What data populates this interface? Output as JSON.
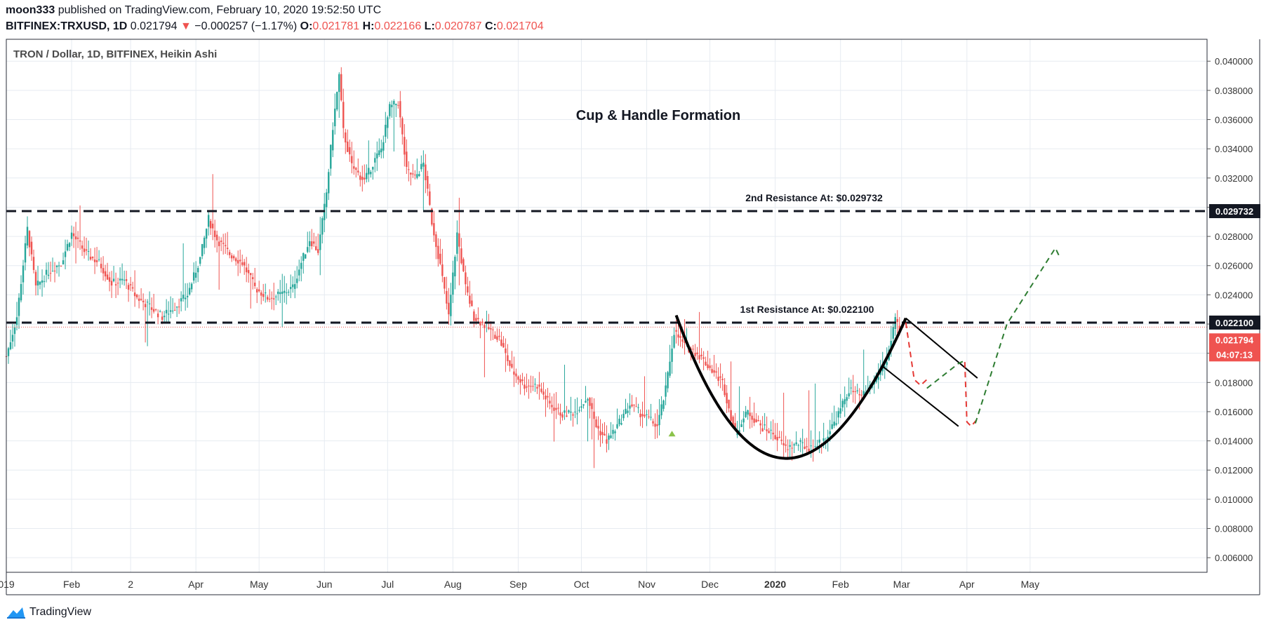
{
  "header": {
    "author": "moon333",
    "published_text": "published on TradingView.com, February 10, 2020 19:52:50 UTC",
    "symbol": "BITFINEX:TRXUSD, 1D",
    "last": "0.021794",
    "change_arrow": "▼",
    "change": "−0.000257 (−1.17%)",
    "o_label": "O:",
    "o_value": "0.021781",
    "h_label": "H:",
    "h_value": "0.022166",
    "l_label": "L:",
    "l_value": "0.020787",
    "c_label": "C:",
    "c_value": "0.021704"
  },
  "footer": {
    "brand": "TradingView",
    "icon": "tradingview-cloud-icon"
  },
  "colors": {
    "up": "#26a69a",
    "down": "#ef5350",
    "grid": "#e6ebf1",
    "ink": "#131722",
    "projection": "#2e7d32"
  },
  "chart_data": {
    "type": "candlestick",
    "subtype": "Heikin Ashi",
    "title": "TRON / Dollar, 1D, BITFINEX, Heikin Ashi",
    "annotation_title": "Cup & Handle Formation",
    "y_range": [
      0.005,
      0.0415
    ],
    "y_ticks": [
      "0.040000",
      "0.038000",
      "0.036000",
      "0.034000",
      "0.032000",
      "0.030000",
      "0.028000",
      "0.026000",
      "0.024000",
      "0.022000",
      "0.020000",
      "0.018000",
      "0.016000",
      "0.014000",
      "0.012000",
      "0.010000",
      "0.008000",
      "0.006000"
    ],
    "x_range_days": [
      0,
      570
    ],
    "x_ticks": [
      {
        "label": "019",
        "day": 0,
        "bold": false
      },
      {
        "label": "Feb",
        "day": 31,
        "bold": false
      },
      {
        "label": "2",
        "day": 59,
        "bold": false
      },
      {
        "label": "Apr",
        "day": 90,
        "bold": false
      },
      {
        "label": "May",
        "day": 120,
        "bold": false
      },
      {
        "label": "Jun",
        "day": 151,
        "bold": false
      },
      {
        "label": "Jul",
        "day": 181,
        "bold": false
      },
      {
        "label": "Aug",
        "day": 212,
        "bold": false
      },
      {
        "label": "Sep",
        "day": 243,
        "bold": false
      },
      {
        "label": "Oct",
        "day": 273,
        "bold": false
      },
      {
        "label": "Nov",
        "day": 304,
        "bold": false
      },
      {
        "label": "Dec",
        "day": 334,
        "bold": false
      },
      {
        "label": "2020",
        "day": 365,
        "bold": true
      },
      {
        "label": "Feb",
        "day": 396,
        "bold": false
      },
      {
        "label": "Mar",
        "day": 425,
        "bold": false
      },
      {
        "label": "Apr",
        "day": 456,
        "bold": false
      },
      {
        "label": "May",
        "day": 486,
        "bold": false
      }
    ],
    "price_anchors": [
      [
        0,
        0.0198
      ],
      [
        5,
        0.0225
      ],
      [
        10,
        0.0285
      ],
      [
        14,
        0.0245
      ],
      [
        20,
        0.0256
      ],
      [
        26,
        0.0262
      ],
      [
        31,
        0.0282
      ],
      [
        38,
        0.0268
      ],
      [
        44,
        0.0262
      ],
      [
        50,
        0.0248
      ],
      [
        56,
        0.025
      ],
      [
        62,
        0.0238
      ],
      [
        68,
        0.0232
      ],
      [
        74,
        0.0225
      ],
      [
        80,
        0.0232
      ],
      [
        86,
        0.024
      ],
      [
        92,
        0.0265
      ],
      [
        96,
        0.0292
      ],
      [
        100,
        0.0278
      ],
      [
        106,
        0.0268
      ],
      [
        112,
        0.0262
      ],
      [
        118,
        0.0245
      ],
      [
        124,
        0.0238
      ],
      [
        130,
        0.024
      ],
      [
        136,
        0.0245
      ],
      [
        140,
        0.0262
      ],
      [
        144,
        0.0278
      ],
      [
        148,
        0.027
      ],
      [
        152,
        0.031
      ],
      [
        155,
        0.0355
      ],
      [
        158,
        0.039
      ],
      [
        160,
        0.0352
      ],
      [
        164,
        0.0328
      ],
      [
        170,
        0.0318
      ],
      [
        174,
        0.033
      ],
      [
        178,
        0.034
      ],
      [
        182,
        0.0368
      ],
      [
        186,
        0.0372
      ],
      [
        190,
        0.0325
      ],
      [
        194,
        0.032
      ],
      [
        198,
        0.033
      ],
      [
        202,
        0.029
      ],
      [
        206,
        0.026
      ],
      [
        210,
        0.0225
      ],
      [
        214,
        0.0282
      ],
      [
        218,
        0.0245
      ],
      [
        222,
        0.0225
      ],
      [
        228,
        0.0218
      ],
      [
        234,
        0.021
      ],
      [
        240,
        0.0188
      ],
      [
        246,
        0.0178
      ],
      [
        252,
        0.0178
      ],
      [
        258,
        0.0165
      ],
      [
        264,
        0.0158
      ],
      [
        270,
        0.016
      ],
      [
        276,
        0.017
      ],
      [
        280,
        0.015
      ],
      [
        285,
        0.014
      ],
      [
        290,
        0.015
      ],
      [
        296,
        0.0165
      ],
      [
        300,
        0.016
      ],
      [
        305,
        0.0155
      ],
      [
        309,
        0.015
      ],
      [
        313,
        0.0175
      ],
      [
        317,
        0.0215
      ],
      [
        322,
        0.0205
      ],
      [
        328,
        0.02
      ],
      [
        334,
        0.019
      ],
      [
        340,
        0.018
      ],
      [
        346,
        0.0145
      ],
      [
        352,
        0.016
      ],
      [
        358,
        0.015
      ],
      [
        364,
        0.0145
      ],
      [
        370,
        0.0135
      ],
      [
        376,
        0.0138
      ],
      [
        382,
        0.0135
      ],
      [
        388,
        0.014
      ],
      [
        394,
        0.0155
      ],
      [
        400,
        0.0175
      ],
      [
        406,
        0.017
      ],
      [
        412,
        0.018
      ],
      [
        418,
        0.0195
      ],
      [
        422,
        0.0222
      ],
      [
        424,
        0.0215
      ]
    ],
    "horizontal_lines": [
      {
        "price": 0.029732,
        "label": "2nd Resistance At: $0.029732",
        "axis_label": "0.029732"
      },
      {
        "price": 0.0221,
        "label": "1st Resistance At: $0.022100",
        "axis_label": "0.022100"
      }
    ],
    "last_price": {
      "price": 0.021794,
      "axis_label": "0.021794",
      "countdown": "04:07:13"
    },
    "cup_curve": {
      "points": [
        [
          318,
          0.0226
        ],
        [
          370,
          0.0128
        ],
        [
          427,
          0.0224
        ]
      ]
    },
    "handle_channel": {
      "upper": [
        [
          427,
          0.0224
        ],
        [
          461,
          0.0183
        ]
      ],
      "lower": [
        [
          416,
          0.0191
        ],
        [
          452,
          0.015
        ]
      ]
    },
    "red_projection": [
      [
        427,
        0.0221
      ],
      [
        431,
        0.0182
      ],
      [
        434,
        0.0178
      ],
      [
        437,
        0.0182
      ]
    ],
    "green_projection_1": [
      [
        437,
        0.0176
      ],
      [
        452,
        0.0193
      ],
      [
        455,
        0.0195
      ]
    ],
    "red_projection_2": [
      [
        455,
        0.0194
      ],
      [
        456,
        0.0153
      ],
      [
        458,
        0.015
      ],
      [
        461,
        0.0155
      ]
    ],
    "green_projection_2": [
      [
        460,
        0.0152
      ],
      [
        475,
        0.022
      ],
      [
        498,
        0.0272
      ],
      [
        500,
        0.0266
      ]
    ],
    "marker_up_day": 316,
    "marker_up_price": 0.0145
  }
}
